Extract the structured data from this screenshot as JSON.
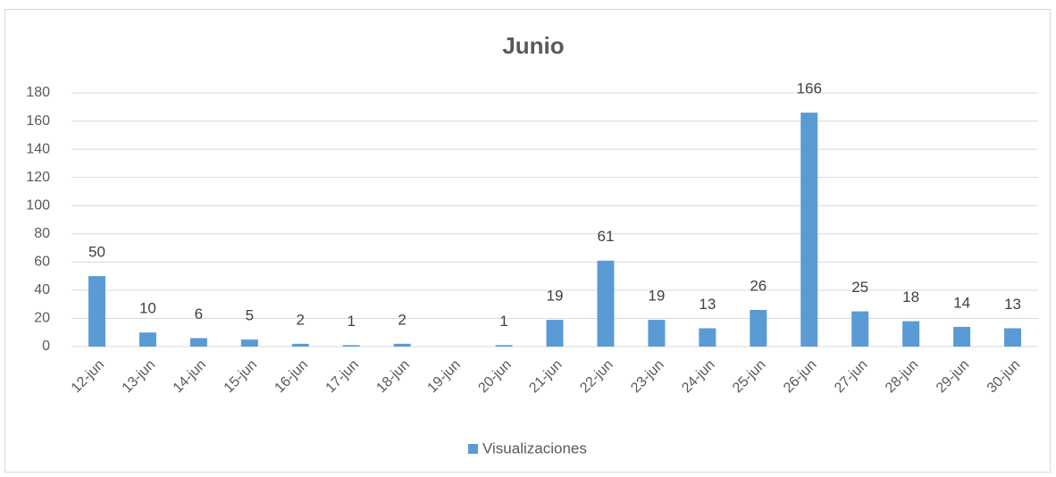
{
  "chart_data": {
    "type": "bar",
    "title": "Junio",
    "categories": [
      "12-jun",
      "13-jun",
      "14-jun",
      "15-jun",
      "16-jun",
      "17-jun",
      "18-jun",
      "19-jun",
      "20-jun",
      "21-jun",
      "22-jun",
      "23-jun",
      "24-jun",
      "25-jun",
      "26-jun",
      "27-jun",
      "28-jun",
      "29-jun",
      "30-jun"
    ],
    "series": [
      {
        "name": "Visualizaciones",
        "color": "#5b9bd5",
        "values": [
          50,
          10,
          6,
          5,
          2,
          1,
          2,
          null,
          1,
          19,
          61,
          19,
          13,
          26,
          166,
          25,
          18,
          14,
          13
        ]
      }
    ],
    "ylim": [
      0,
      180
    ],
    "yticks": [
      0,
      20,
      40,
      60,
      80,
      100,
      120,
      140,
      160,
      180
    ],
    "grid": true,
    "legend": "bottom"
  }
}
